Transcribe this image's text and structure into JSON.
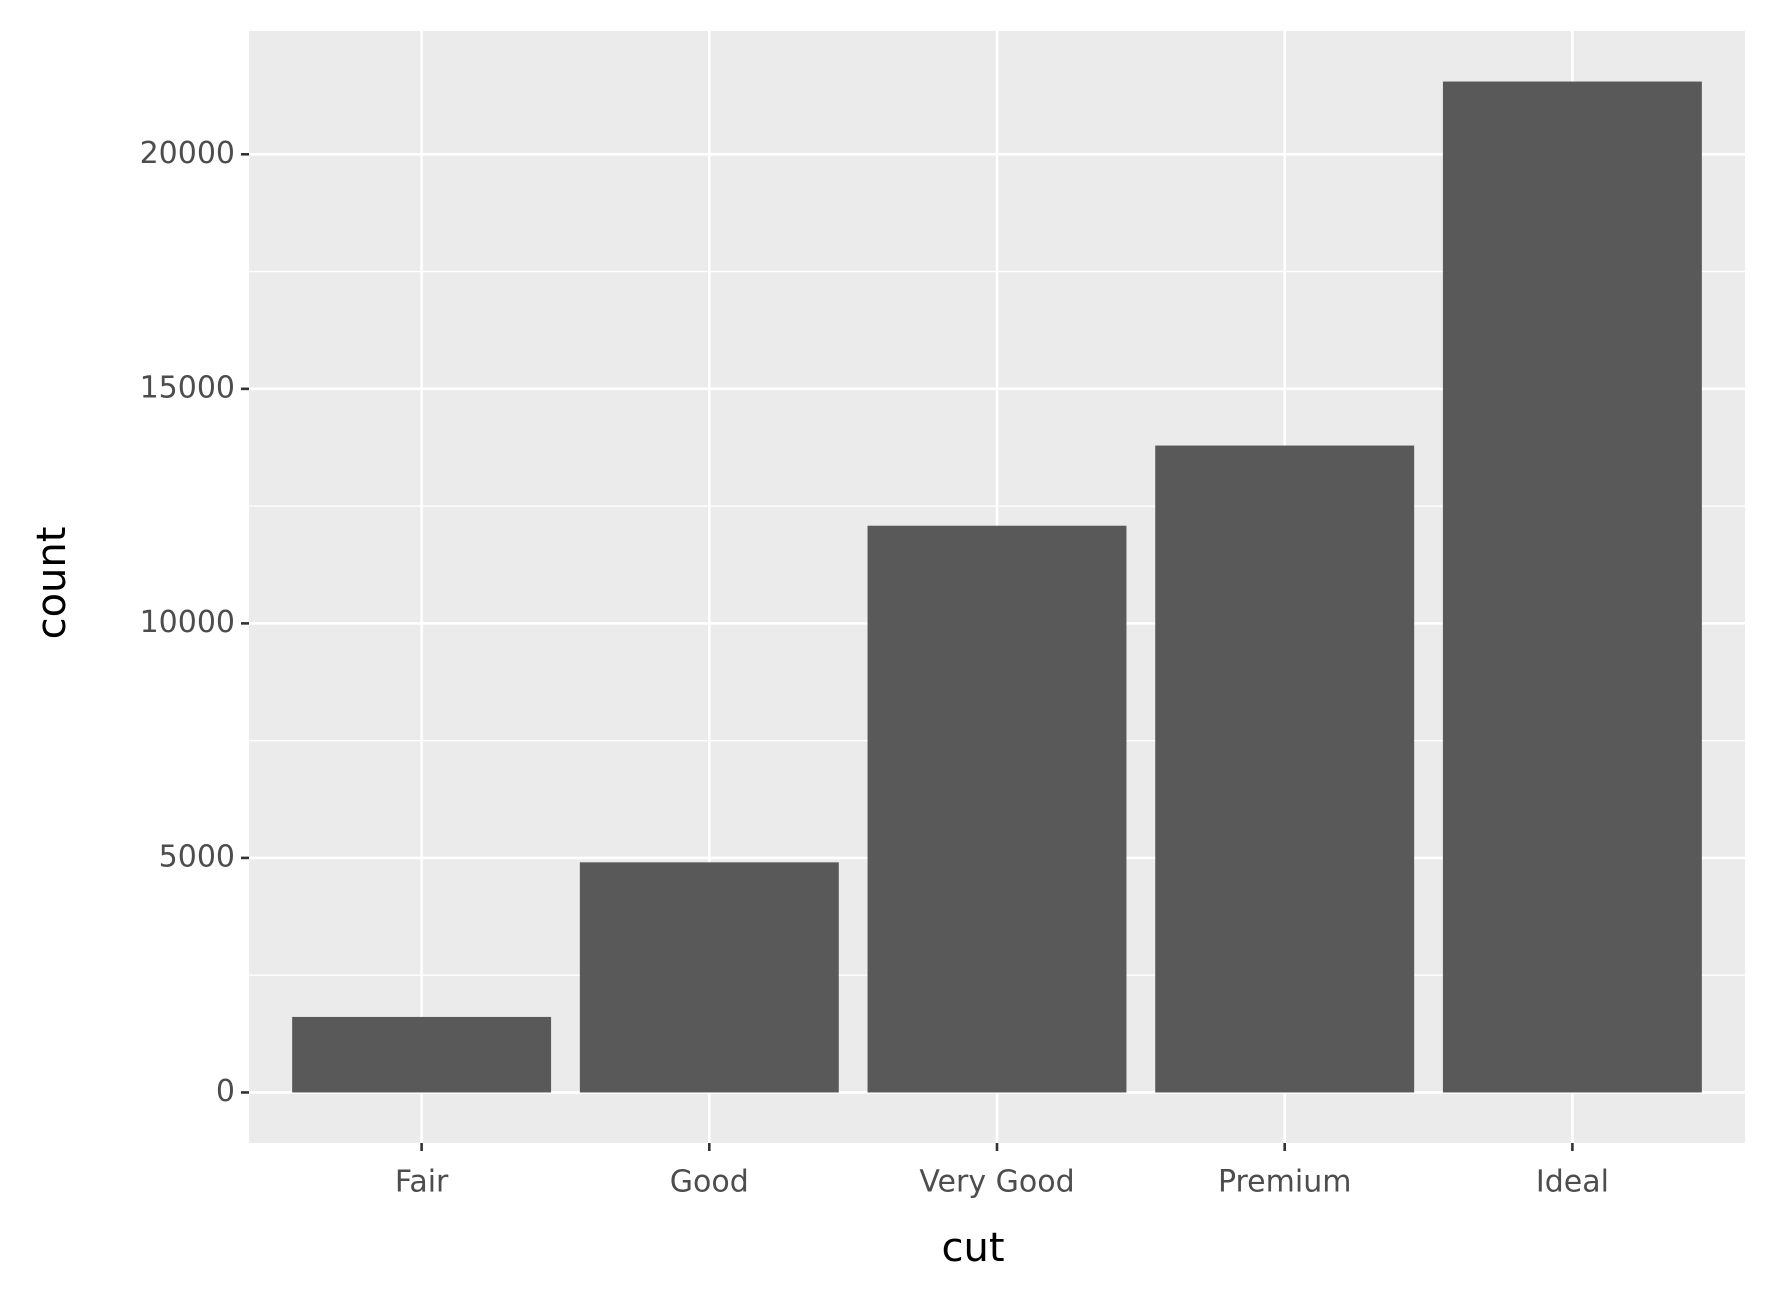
{
  "chart_data": {
    "type": "bar",
    "x_label": "cut",
    "y_label": "count",
    "categories": [
      "Fair",
      "Good",
      "Very Good",
      "Premium",
      "Ideal"
    ],
    "values": [
      1610,
      4906,
      12082,
      13791,
      21551
    ],
    "color": "#595959",
    "ylim": [
      -1077.55,
      22628.55
    ],
    "yticks": [
      0,
      5000,
      10000,
      15000,
      20000
    ],
    "grid": true
  }
}
